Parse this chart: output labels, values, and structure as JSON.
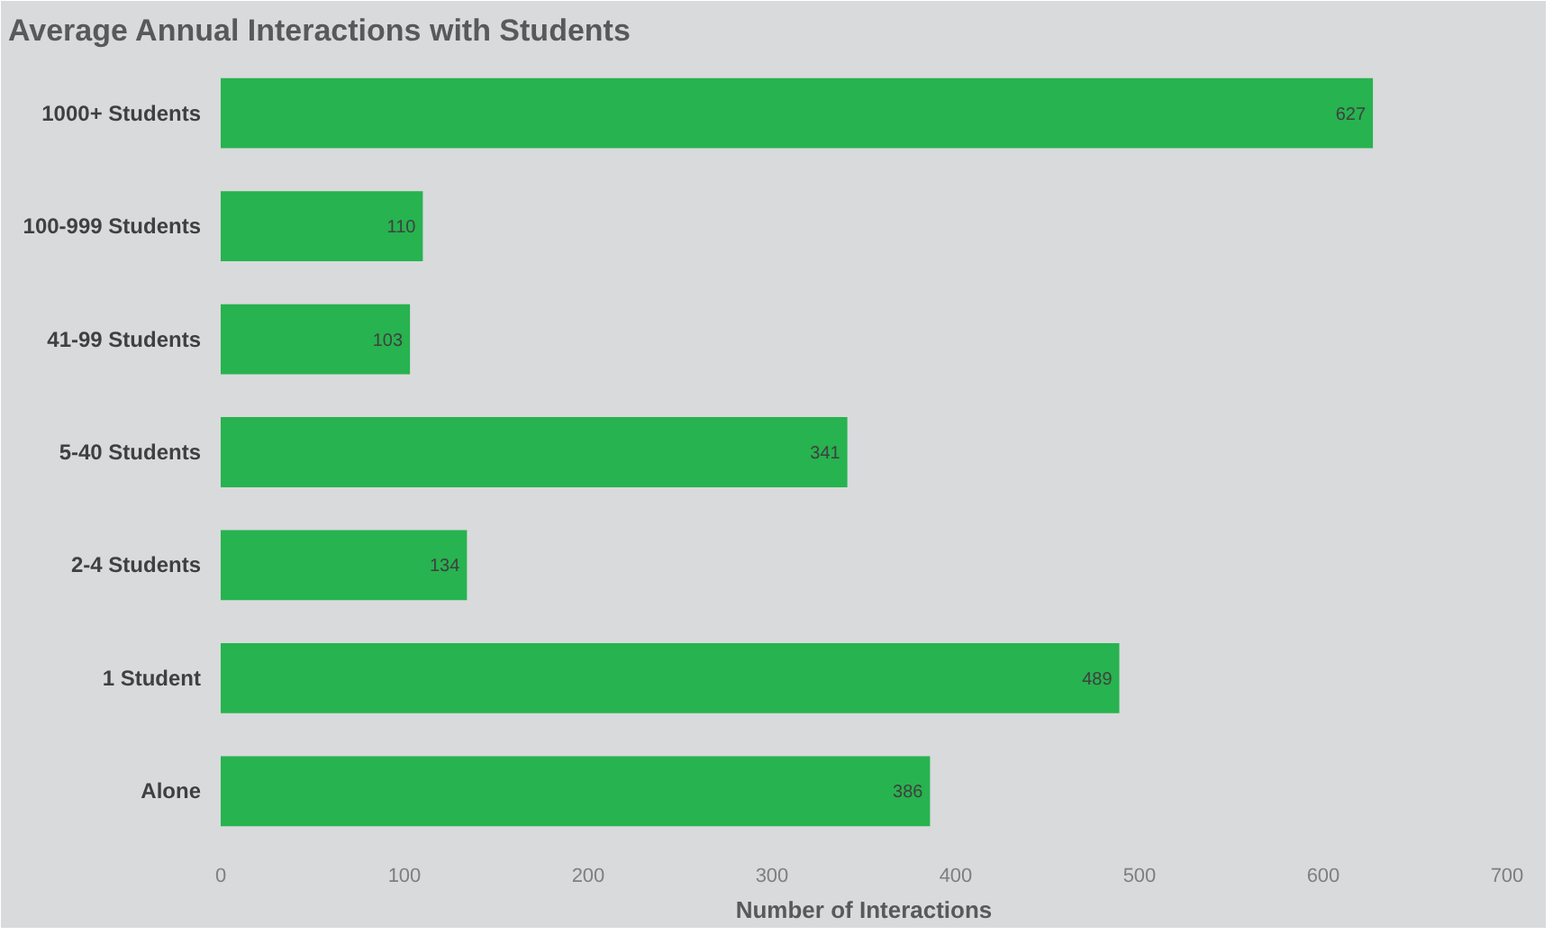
{
  "chart_data": {
    "type": "bar",
    "orientation": "horizontal",
    "title": "Average Annual Interactions with Students",
    "xlabel": "Number of Interactions",
    "categories": [
      "1000+ Students",
      "100-999 Students",
      "41-99 Students",
      "5-40 Students",
      "2-4 Students",
      "1 Student",
      "Alone"
    ],
    "values": [
      627,
      110,
      103,
      341,
      134,
      489,
      386
    ],
    "color": "#27b34f",
    "xlim": [
      0,
      700
    ],
    "xticks": [
      0,
      100,
      200,
      300,
      400,
      500,
      600,
      700
    ],
    "data_labels": true,
    "grid": false
  }
}
